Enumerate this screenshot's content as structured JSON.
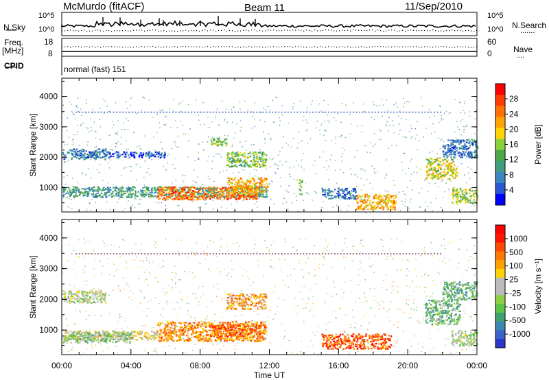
{
  "header": {
    "station": "McMurdo (fitACF)",
    "beam": "Beam 11",
    "date": "11/Sep/2010"
  },
  "sky_panel": {
    "left_label": "N.Sky",
    "left_ticks": [
      "10^5",
      "10^0"
    ],
    "right_ticks": [
      "10^5",
      "10^0"
    ],
    "right_label": "N.Search",
    "right_marker": "......."
  },
  "freq_panel": {
    "left_label_1": "Freq.",
    "left_label_2": "[MHz]",
    "left_ticks": [
      "18",
      "8"
    ],
    "right_ticks": [
      "60",
      "0"
    ],
    "right_label": "Nave",
    "right_marker": "...."
  },
  "cpid": {
    "label": "CPID",
    "value": "normal (fast) 151"
  },
  "chart_data": [
    {
      "type": "heatmap",
      "name": "power",
      "ylabel": "Slant Range [km]",
      "yticks": [
        "1000",
        "2000",
        "3000",
        "4000"
      ],
      "ylim": [
        200,
        4600
      ],
      "x_ticks": [
        "00:00",
        "04:00",
        "08:00",
        "12:00",
        "16:00",
        "20:00",
        "00:00"
      ],
      "xlim_hours": [
        0,
        24
      ],
      "colorbar": {
        "label": "Power [dB]",
        "ticks": [
          "28",
          "24",
          "20",
          "16",
          "12",
          "8",
          "4"
        ],
        "range": [
          0,
          32
        ],
        "colors": [
          "#0000ff",
          "#2b57d1",
          "#3d86c0",
          "#3f9e80",
          "#4ea64a",
          "#8cd13b",
          "#ffd400",
          "#ffa300",
          "#ff7200",
          "#ff3c00",
          "#ff0000"
        ]
      },
      "regions": [
        {
          "t0": 0.0,
          "t1": 11.8,
          "r0": 700,
          "r1": 1050,
          "level": 10
        },
        {
          "t0": 5.5,
          "t1": 11.3,
          "r0": 620,
          "r1": 1050,
          "level": 26
        },
        {
          "t0": 9.5,
          "t1": 11.9,
          "r0": 850,
          "r1": 1350,
          "level": 22
        },
        {
          "t0": 0.0,
          "t1": 2.5,
          "r0": 1950,
          "r1": 2300,
          "level": 6
        },
        {
          "t0": 2.5,
          "t1": 6.0,
          "r0": 2000,
          "r1": 2200,
          "level": 4
        },
        {
          "t0": 8.5,
          "t1": 9.5,
          "r0": 2400,
          "r1": 2650,
          "level": 14
        },
        {
          "t0": 9.5,
          "t1": 11.8,
          "r0": 1700,
          "r1": 2200,
          "level": 14
        },
        {
          "t0": 15.0,
          "t1": 17.0,
          "r0": 650,
          "r1": 1000,
          "level": 6
        },
        {
          "t0": 17.0,
          "t1": 19.3,
          "r0": 300,
          "r1": 800,
          "level": 22
        },
        {
          "t0": 21.0,
          "t1": 22.8,
          "r0": 1300,
          "r1": 2000,
          "level": 18
        },
        {
          "t0": 22.0,
          "t1": 24.0,
          "r0": 2000,
          "r1": 2600,
          "level": 6
        },
        {
          "t0": 22.5,
          "t1": 24.0,
          "r0": 500,
          "r1": 1000,
          "level": 16
        },
        {
          "t0": 13.7,
          "t1": 13.9,
          "r0": 800,
          "r1": 1300,
          "level": 14
        }
      ],
      "gs_line_km": 3500
    },
    {
      "type": "heatmap",
      "name": "velocity",
      "ylabel": "Slant Range [km]",
      "yticks": [
        "1000",
        "2000",
        "3000",
        "4000"
      ],
      "ylim": [
        200,
        4600
      ],
      "x_ticks": [
        "00:00",
        "04:00",
        "08:00",
        "12:00",
        "16:00",
        "20:00",
        "00:00"
      ],
      "xlim_hours": [
        0,
        24
      ],
      "xlabel": "Time UT",
      "colorbar": {
        "label": "Velocity [m s⁻¹]",
        "ticks": [
          "1000",
          "500",
          "100",
          "25",
          "-25",
          "-100",
          "-500",
          "-1000"
        ],
        "colors": [
          "#2a37c8",
          "#3c62c8",
          "#3d86b0",
          "#3fa070",
          "#5fc24a",
          "#8ed045",
          "#bbbbbb",
          "#bbbbbb",
          "#ffd200",
          "#ffa000",
          "#ff7800",
          "#ff4800",
          "#ff1400",
          "#ff0000"
        ]
      },
      "regions": [
        {
          "t0": 0.0,
          "t1": 5.5,
          "r0": 700,
          "r1": 1000,
          "level": 0.55
        },
        {
          "t0": 0.0,
          "t1": 4.0,
          "r0": 600,
          "r1": 950,
          "level": 0.38
        },
        {
          "t0": 5.5,
          "t1": 11.8,
          "r0": 650,
          "r1": 1300,
          "level": 0.72
        },
        {
          "t0": 8.5,
          "t1": 11.5,
          "r0": 800,
          "r1": 1200,
          "level": 0.8
        },
        {
          "t0": 0.0,
          "t1": 2.5,
          "r0": 1900,
          "r1": 2300,
          "level": 0.45
        },
        {
          "t0": 9.5,
          "t1": 11.8,
          "r0": 1700,
          "r1": 2200,
          "level": 0.7
        },
        {
          "t0": 15.0,
          "t1": 19.0,
          "r0": 400,
          "r1": 900,
          "level": 0.82
        },
        {
          "t0": 21.0,
          "t1": 23.0,
          "r0": 1200,
          "r1": 2000,
          "level": 0.3
        },
        {
          "t0": 22.0,
          "t1": 24.0,
          "r0": 2000,
          "r1": 2600,
          "level": 0.32
        },
        {
          "t0": 22.5,
          "t1": 24.0,
          "r0": 500,
          "r1": 1000,
          "level": 0.45
        }
      ],
      "gs_line_km": 3500
    }
  ]
}
